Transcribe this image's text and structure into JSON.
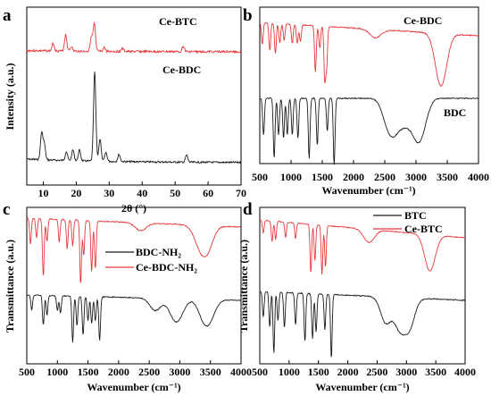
{
  "colors": {
    "red": "#e8383b",
    "black": "#1a1a1a"
  },
  "chart_data": [
    {
      "panel": "a",
      "type": "line",
      "xlabel": "2θ (°)",
      "ylabel": "Intensity (a.u.)",
      "xlim": [
        5,
        70
      ],
      "x_ticks": [
        "10",
        "20",
        "30",
        "40",
        "50",
        "60",
        "70"
      ],
      "series": [
        {
          "name": "Ce-BTC",
          "color": "red",
          "peaks": [
            [
              13,
              0.25
            ],
            [
              16.8,
              0.55
            ],
            [
              18.5,
              0.15
            ],
            [
              24.6,
              0.45
            ],
            [
              25.5,
              0.9
            ],
            [
              28.5,
              0.12
            ],
            [
              34,
              0.1
            ],
            [
              52.5,
              0.18
            ]
          ]
        },
        {
          "name": "Ce-BDC",
          "color": "black",
          "peaks": [
            [
              9.5,
              0.3
            ],
            [
              10.3,
              0.18
            ],
            [
              17,
              0.1
            ],
            [
              19,
              0.12
            ],
            [
              21,
              0.12
            ],
            [
              25.6,
              1.0
            ],
            [
              27.2,
              0.25
            ],
            [
              29,
              0.1
            ],
            [
              33,
              0.08
            ],
            [
              53.5,
              0.08
            ]
          ]
        }
      ]
    },
    {
      "panel": "b",
      "type": "line",
      "xlabel": "Wavenumber (cm⁻¹)",
      "ylabel": "",
      "xlim": [
        500,
        4000
      ],
      "x_ticks": [
        "500",
        "1000",
        "1500",
        "2000",
        "2500",
        "3000",
        "3500",
        "4000"
      ],
      "series": [
        {
          "name": "Ce-BDC",
          "color": "red",
          "bands": [
            [
              540,
              0.4
            ],
            [
              660,
              0.5
            ],
            [
              750,
              0.55
            ],
            [
              820,
              0.35
            ],
            [
              890,
              0.3
            ],
            [
              1020,
              0.35
            ],
            [
              1100,
              0.35
            ],
            [
              1150,
              0.3
            ],
            [
              1390,
              0.85
            ],
            [
              1460,
              0.4
            ],
            [
              1540,
              0.95
            ],
            [
              1570,
              0.7
            ],
            [
              2350,
              0.15
            ],
            [
              3400,
              0.95
            ]
          ]
        },
        {
          "name": "BDC",
          "color": "black",
          "bands": [
            [
              560,
              0.55
            ],
            [
              730,
              0.9
            ],
            [
              800,
              0.55
            ],
            [
              880,
              0.6
            ],
            [
              940,
              0.55
            ],
            [
              1020,
              0.55
            ],
            [
              1110,
              0.6
            ],
            [
              1290,
              0.9
            ],
            [
              1420,
              0.7
            ],
            [
              1580,
              0.5
            ],
            [
              1690,
              1.0
            ],
            [
              2550,
              0.35
            ],
            [
              2670,
              0.35
            ],
            [
              2830,
              0.3
            ],
            [
              3000,
              0.4
            ],
            [
              3100,
              0.35
            ]
          ]
        }
      ]
    },
    {
      "panel": "c",
      "type": "line",
      "xlabel": "Wavenumber (cm⁻¹)",
      "ylabel": "Transmittance (a.u.)",
      "xlim": [
        500,
        4000
      ],
      "x_ticks": [
        "500",
        "1000",
        "1500",
        "2000",
        "2500",
        "3000",
        "3500",
        "4000"
      ],
      "legend": [
        "BDC-NH₂",
        "Ce-BDC-NH₂"
      ],
      "series": [
        {
          "name": "Ce-BDC-NH₂",
          "color": "red",
          "bands": [
            [
              560,
              0.4
            ],
            [
              660,
              0.3
            ],
            [
              770,
              0.9
            ],
            [
              830,
              0.35
            ],
            [
              1030,
              0.35
            ],
            [
              1160,
              0.45
            ],
            [
              1250,
              0.4
            ],
            [
              1380,
              1.0
            ],
            [
              1430,
              0.55
            ],
            [
              1560,
              0.8
            ],
            [
              1620,
              0.75
            ],
            [
              2360,
              0.12
            ],
            [
              3300,
              0.2
            ],
            [
              3400,
              0.25
            ],
            [
              3480,
              0.2
            ]
          ]
        },
        {
          "name": "BDC-NH₂",
          "color": "black",
          "bands": [
            [
              580,
              0.3
            ],
            [
              770,
              0.6
            ],
            [
              830,
              0.4
            ],
            [
              1000,
              0.3
            ],
            [
              1050,
              0.35
            ],
            [
              1250,
              0.95
            ],
            [
              1320,
              0.6
            ],
            [
              1420,
              0.8
            ],
            [
              1500,
              0.5
            ],
            [
              1560,
              0.55
            ],
            [
              1620,
              0.5
            ],
            [
              1690,
              0.9
            ],
            [
              2600,
              0.25
            ],
            [
              2900,
              0.3
            ],
            [
              3000,
              0.25
            ],
            [
              3390,
              0.35
            ],
            [
              3500,
              0.3
            ]
          ]
        }
      ]
    },
    {
      "panel": "d",
      "type": "line",
      "xlabel": "Wavenumber (cm⁻¹)",
      "ylabel": "Transmittance (a.u.)",
      "xlim": [
        500,
        4000
      ],
      "x_ticks": [
        "500",
        "1000",
        "1500",
        "2000",
        "2500",
        "3000",
        "3500",
        "4000"
      ],
      "legend": [
        "BTC",
        "Ce-BTC"
      ],
      "series": [
        {
          "name": "Ce-BTC",
          "color": "red",
          "bands": [
            [
              560,
              0.25
            ],
            [
              710,
              0.4
            ],
            [
              770,
              0.35
            ],
            [
              940,
              0.3
            ],
            [
              1110,
              0.3
            ],
            [
              1370,
              0.95
            ],
            [
              1440,
              0.7
            ],
            [
              1560,
              0.95
            ],
            [
              1620,
              0.8
            ],
            [
              2360,
              0.25
            ],
            [
              3400,
              0.7
            ]
          ]
        },
        {
          "name": "BTC",
          "color": "black",
          "bands": [
            [
              560,
              0.4
            ],
            [
              670,
              0.55
            ],
            [
              740,
              0.95
            ],
            [
              810,
              0.45
            ],
            [
              920,
              0.55
            ],
            [
              1110,
              0.5
            ],
            [
              1270,
              0.75
            ],
            [
              1400,
              0.7
            ],
            [
              1460,
              0.6
            ],
            [
              1610,
              0.55
            ],
            [
              1720,
              1.0
            ],
            [
              2650,
              0.4
            ],
            [
              2880,
              0.45
            ],
            [
              3050,
              0.45
            ]
          ]
        }
      ]
    }
  ]
}
